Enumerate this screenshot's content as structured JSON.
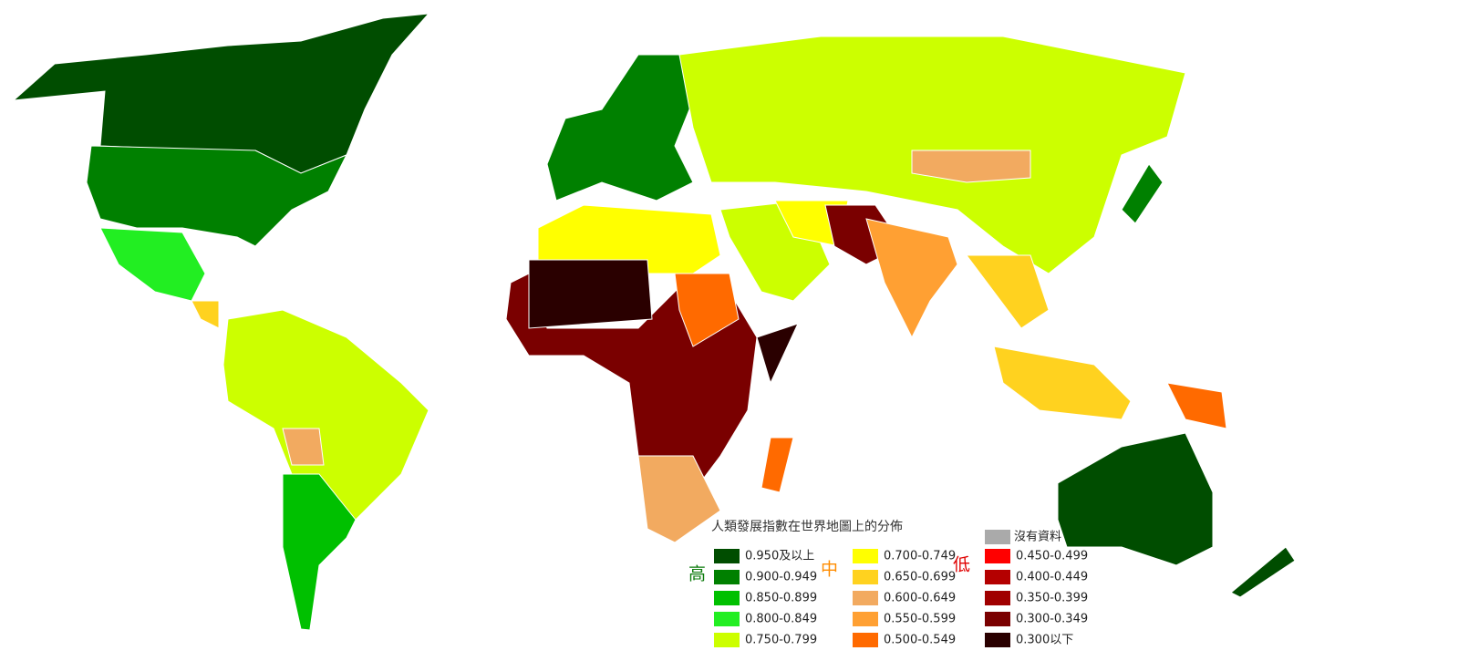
{
  "legend": {
    "title": "人類發展指數在世界地圖上的分佈",
    "tiers": {
      "high": "高",
      "medium": "中",
      "low": "低"
    },
    "no_data": {
      "label": "沒有資料",
      "color": "#aaaaaa"
    },
    "columns": [
      [
        {
          "label": "0.950及以上",
          "color": "#004d00"
        },
        {
          "label": "0.900-0.949",
          "color": "#008000"
        },
        {
          "label": "0.850-0.899",
          "color": "#00c000"
        },
        {
          "label": "0.800-0.849",
          "color": "#22ee22"
        },
        {
          "label": "0.750-0.799",
          "color": "#ccff00"
        }
      ],
      [
        {
          "label": "0.700-0.749",
          "color": "#ffff00"
        },
        {
          "label": "0.650-0.699",
          "color": "#ffd21f"
        },
        {
          "label": "0.600-0.649",
          "color": "#f2aa60"
        },
        {
          "label": "0.550-0.599",
          "color": "#ffa033"
        },
        {
          "label": "0.500-0.549",
          "color": "#ff6a00"
        }
      ],
      [
        {
          "label": "0.450-0.499",
          "color": "#ff0000"
        },
        {
          "label": "0.400-0.449",
          "color": "#b40000"
        },
        {
          "label": "0.350-0.399",
          "color": "#a00000"
        },
        {
          "label": "0.300-0.349",
          "color": "#7a0000"
        },
        {
          "label": "0.300以下",
          "color": "#2a0000"
        }
      ]
    ]
  }
}
